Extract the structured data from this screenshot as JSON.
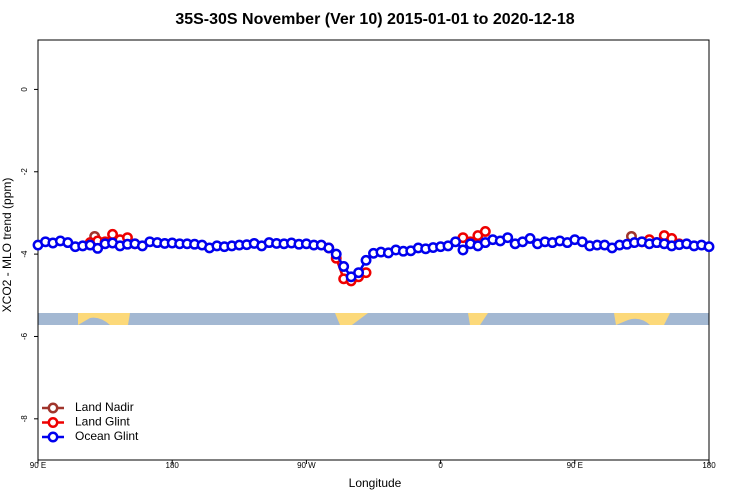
{
  "chart_data": {
    "type": "line",
    "title": "35S-30S November (Ver 10)   2015-01-01 to 2020-12-18",
    "xlabel": "Longitude",
    "ylabel": "XCO2 - MLO trend (ppm)",
    "xlim": [
      90,
      540
    ],
    "ylim": [
      -9.0,
      1.2
    ],
    "xticks": [
      {
        "value": 90,
        "label": "90 E"
      },
      {
        "value": 180,
        "label": "180"
      },
      {
        "value": 270,
        "label": "90 W"
      },
      {
        "value": 360,
        "label": "0"
      },
      {
        "value": 450,
        "label": "90 E"
      },
      {
        "value": 540,
        "label": "180"
      }
    ],
    "yticks": [
      -8,
      -6,
      -4,
      -2,
      0
    ],
    "legend": "bottomleft",
    "series": [
      {
        "name": "Land Nadir",
        "color": "#a0352c",
        "x": [
          128,
          300,
          488
        ],
        "values": [
          -3.57,
          null,
          -3.57
        ]
      },
      {
        "name": "Land Glint",
        "color": "#ee0000",
        "x": [
          125,
          130,
          135,
          140,
          145,
          150,
          155,
          160,
          285,
          290,
          295,
          300,
          305,
          310,
          315,
          375,
          380,
          385,
          390,
          395,
          495,
          500,
          505,
          510,
          515,
          520
        ],
        "values": [
          -3.72,
          -3.68,
          -3.7,
          -3.52,
          -3.65,
          -3.6,
          -3.75,
          null,
          -3.85,
          -4.1,
          -4.6,
          -4.65,
          -4.55,
          -4.45,
          null,
          -3.6,
          -3.7,
          -3.55,
          -3.45,
          null,
          -3.7,
          -3.65,
          -3.72,
          -3.55,
          -3.62,
          -3.75
        ]
      },
      {
        "name": "Ocean Glint",
        "color": "#0000ee",
        "x": [
          90,
          95,
          100,
          105,
          110,
          115,
          120,
          125,
          130,
          135,
          140,
          145,
          150,
          155,
          160,
          165,
          170,
          175,
          180,
          185,
          190,
          195,
          200,
          205,
          210,
          215,
          220,
          225,
          230,
          235,
          240,
          245,
          250,
          255,
          260,
          265,
          270,
          275,
          280,
          285,
          290,
          295,
          300,
          305,
          310,
          315,
          320,
          325,
          330,
          335,
          340,
          345,
          350,
          355,
          360,
          365,
          370,
          375,
          380,
          385,
          390,
          395,
          400,
          405,
          410,
          415,
          420,
          425,
          430,
          435,
          440,
          445,
          450,
          455,
          460,
          465,
          470,
          475,
          480,
          485,
          490,
          495,
          500,
          505,
          510,
          515,
          520,
          525,
          530,
          535,
          540
        ],
        "values": [
          -3.78,
          -3.7,
          -3.73,
          -3.68,
          -3.72,
          -3.82,
          -3.8,
          -3.78,
          -3.86,
          -3.75,
          -3.73,
          -3.8,
          -3.76,
          -3.75,
          -3.8,
          -3.7,
          -3.72,
          -3.74,
          -3.73,
          -3.75,
          -3.75,
          -3.76,
          -3.78,
          -3.85,
          -3.8,
          -3.82,
          -3.8,
          -3.78,
          -3.77,
          -3.74,
          -3.8,
          -3.72,
          -3.74,
          -3.75,
          -3.73,
          -3.76,
          -3.75,
          -3.78,
          -3.78,
          -3.85,
          -4.0,
          -4.3,
          -4.55,
          -4.45,
          -4.15,
          -3.98,
          -3.95,
          -3.97,
          -3.9,
          -3.93,
          -3.92,
          -3.85,
          -3.87,
          -3.84,
          -3.82,
          -3.8,
          -3.7,
          -3.9,
          -3.75,
          -3.8,
          -3.72,
          -3.65,
          -3.68,
          -3.6,
          -3.75,
          -3.7,
          -3.62,
          -3.75,
          -3.7,
          -3.72,
          -3.68,
          -3.72,
          -3.65,
          -3.7,
          -3.8,
          -3.78,
          -3.78,
          -3.85,
          -3.78,
          -3.76,
          -3.72,
          -3.7,
          -3.75,
          -3.72,
          -3.75,
          -3.8,
          -3.77,
          -3.75,
          -3.8,
          -3.78,
          -3.82
        ]
      }
    ]
  }
}
